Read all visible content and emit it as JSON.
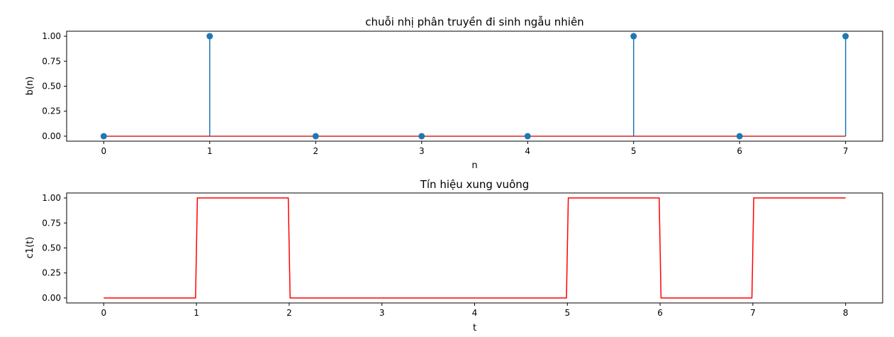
{
  "chart_data": [
    {
      "type": "stem",
      "title": "chuỗi nhị phân truyền đi sinh ngẫu nhiên",
      "xlabel": "n",
      "ylabel": "b(n)",
      "x": [
        0,
        1,
        2,
        3,
        4,
        5,
        6,
        7
      ],
      "values": [
        0,
        1,
        0,
        0,
        0,
        1,
        0,
        1
      ],
      "xlim": [
        -0.35,
        7.35
      ],
      "ylim": [
        -0.05,
        1.05
      ],
      "xticks": [
        "0",
        "1",
        "2",
        "3",
        "4",
        "5",
        "6",
        "7"
      ],
      "yticks": [
        "0.00",
        "0.25",
        "0.50",
        "0.75",
        "1.00"
      ],
      "colors": {
        "stem": "#1f77b4",
        "marker": "#1f77b4",
        "baseline": "#d62728"
      },
      "grid": false
    },
    {
      "type": "line",
      "title": "Tín hiệu xung vuông",
      "xlabel": "t",
      "ylabel": "c1(t)",
      "x": [
        0,
        0.99,
        1.01,
        1.99,
        2.01,
        4.99,
        5.01,
        5.99,
        6.01,
        6.99,
        7.01,
        8
      ],
      "values": [
        0,
        0,
        1,
        1,
        0,
        0,
        1,
        1,
        0,
        0,
        1,
        1
      ],
      "xlim": [
        -0.4,
        8.4
      ],
      "ylim": [
        -0.05,
        1.05
      ],
      "xticks": [
        "0",
        "1",
        "2",
        "3",
        "4",
        "5",
        "6",
        "7",
        "8"
      ],
      "yticks": [
        "0.00",
        "0.25",
        "0.50",
        "0.75",
        "1.00"
      ],
      "colors": {
        "line": "#ff0000"
      },
      "grid": false
    }
  ]
}
